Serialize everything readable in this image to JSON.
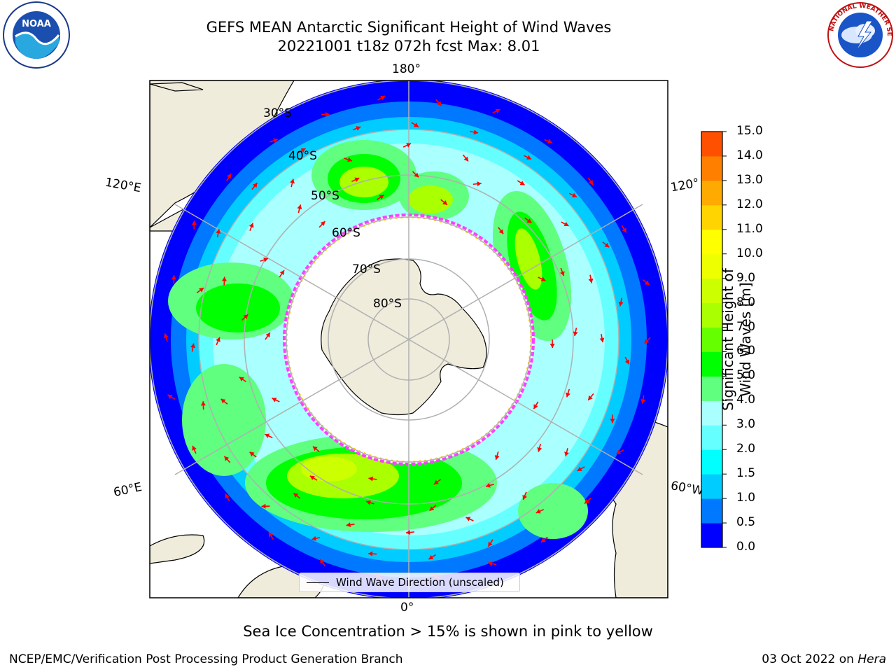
{
  "header": {
    "title_line1": "GEFS MEAN Antarctic Significant Height of Wind Waves",
    "title_line2": "20221001 t18z 072h fcst   Max: 8.01"
  },
  "logos": {
    "left": "NOAA",
    "right": "NATIONAL WEATHER SERVICE"
  },
  "map": {
    "longitude_labels": {
      "top": "180°",
      "bottom": "0°",
      "upper_left": "120°E",
      "lower_left": "60°E",
      "upper_right": "120°",
      "lower_right": "60°W"
    },
    "latitude_labels": [
      "30°S",
      "40°S",
      "50°S",
      "60°S",
      "70°S",
      "80°S"
    ],
    "legend_label": "Wind Wave Direction (unscaled)",
    "colors": {
      "land": "#efecdc",
      "ice_edge_pink": "#ff40ff",
      "ice_edge_yellow": "#ffd000",
      "arrow": "#ff0000"
    }
  },
  "colorbar": {
    "label": "Significant Height of Wind Waves [m]",
    "ticks": [
      "15.0",
      "14.0",
      "13.0",
      "12.0",
      "11.0",
      "10.0",
      "9.0",
      "8.0",
      "7.0",
      "6.0",
      "5.0",
      "4.0",
      "3.0",
      "2.0",
      "1.5",
      "1.0",
      "0.5",
      "0.0"
    ],
    "colors_bottom_to_top": [
      "#0000ff",
      "#0078ff",
      "#00ccff",
      "#00ffff",
      "#66ffff",
      "#aaffff",
      "#60ff80",
      "#00ff00",
      "#66ff00",
      "#aaff00",
      "#ccff00",
      "#eeff00",
      "#ffff00",
      "#ffd400",
      "#ffaa00",
      "#ff8000",
      "#ff5000",
      "#ff2000",
      "#ff0000"
    ]
  },
  "footer": {
    "note": "Sea Ice Concentration > 15% is shown in pink to yellow",
    "left": "NCEP/EMC/Verification Post Processing Product Generation Branch",
    "right_date": "03 Oct 2022 on ",
    "right_host": "Hera"
  }
}
